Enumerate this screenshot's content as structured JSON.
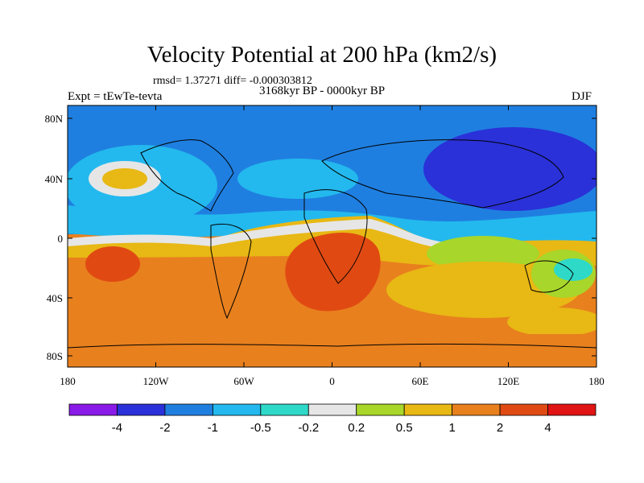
{
  "title": "Velocity Potential at 200 hPa (km2/s)",
  "stats": "rmsd= 1.37271 diff= -0.000303812",
  "experiment": "Expt = tEwTe-tevta",
  "period": "3168kyr BP - 0000kyr BP",
  "season": "DJF",
  "axes": {
    "lat_ticks": [
      "80N",
      "40N",
      "0",
      "40S",
      "80S"
    ],
    "lon_ticks": [
      "180",
      "120W",
      "60W",
      "0",
      "60E",
      "120E",
      "180"
    ]
  },
  "colorbar": {
    "colors": [
      "#8a1ae8",
      "#2a31d8",
      "#1f7fe0",
      "#23b9ee",
      "#2ed9c8",
      "#e6e6e6",
      "#a8d62a",
      "#e8b814",
      "#e8801e",
      "#e04a12",
      "#e01414"
    ],
    "labels": [
      "-4",
      "-2",
      "-1",
      "-0.5",
      "-0.2",
      "0.2",
      "0.5",
      "1",
      "2",
      "4"
    ]
  },
  "field_colors": {
    "deep_negative": "#2a31d8",
    "negative": "#1f7fe0",
    "weak_negative": "#23b9ee",
    "near_zero_neg": "#2ed9c8",
    "neutral": "#e6e6e6",
    "weak_positive": "#a8d62a",
    "positive": "#e8b814",
    "strong_positive": "#e8801e",
    "very_strong_positive": "#e04a12"
  }
}
